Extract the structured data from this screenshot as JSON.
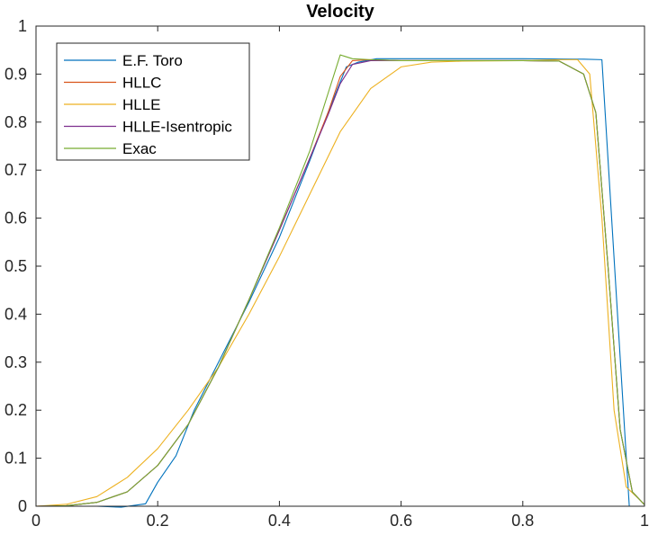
{
  "chart_data": {
    "type": "line",
    "title": "Velocity",
    "xlabel": "",
    "ylabel": "",
    "xlim": [
      0,
      1
    ],
    "ylim": [
      0,
      1
    ],
    "x_ticks": [
      "0",
      "0.2",
      "0.4",
      "0.6",
      "0.8",
      "1"
    ],
    "y_ticks": [
      "0",
      "0.1",
      "0.2",
      "0.3",
      "0.4",
      "0.5",
      "0.6",
      "0.7",
      "0.8",
      "0.9",
      "1"
    ],
    "grid": false,
    "legend_position": "top-left",
    "series": [
      {
        "name": "E.F. Toro",
        "color": "#0072BD",
        "points": [
          [
            0,
            0
          ],
          [
            0.05,
            0
          ],
          [
            0.1,
            0
          ],
          [
            0.14,
            -0.002
          ],
          [
            0.18,
            0.005
          ],
          [
            0.2,
            0.05
          ],
          [
            0.23,
            0.105
          ],
          [
            0.26,
            0.2
          ],
          [
            0.3,
            0.3
          ],
          [
            0.35,
            0.425
          ],
          [
            0.4,
            0.56
          ],
          [
            0.45,
            0.72
          ],
          [
            0.48,
            0.82
          ],
          [
            0.51,
            0.915
          ],
          [
            0.53,
            0.925
          ],
          [
            0.56,
            0.932
          ],
          [
            0.6,
            0.932
          ],
          [
            0.7,
            0.932
          ],
          [
            0.8,
            0.932
          ],
          [
            0.9,
            0.931
          ],
          [
            0.93,
            0.93
          ],
          [
            0.96,
            0.31
          ],
          [
            0.975,
            0
          ],
          [
            0.99,
            0
          ],
          [
            1,
            0
          ]
        ]
      },
      {
        "name": "HLLC",
        "color": "#D95319",
        "points": [
          [
            0,
            0
          ],
          [
            0.05,
            0.001
          ],
          [
            0.1,
            0.008
          ],
          [
            0.15,
            0.03
          ],
          [
            0.2,
            0.085
          ],
          [
            0.25,
            0.17
          ],
          [
            0.3,
            0.29
          ],
          [
            0.35,
            0.43
          ],
          [
            0.4,
            0.575
          ],
          [
            0.45,
            0.725
          ],
          [
            0.48,
            0.82
          ],
          [
            0.5,
            0.895
          ],
          [
            0.52,
            0.928
          ],
          [
            0.55,
            0.93
          ],
          [
            0.6,
            0.928
          ],
          [
            0.7,
            0.928
          ],
          [
            0.8,
            0.928
          ],
          [
            0.86,
            0.927
          ],
          [
            0.9,
            0.9
          ],
          [
            0.92,
            0.82
          ],
          [
            0.94,
            0.5
          ],
          [
            0.96,
            0.16
          ],
          [
            0.98,
            0.03
          ],
          [
            1,
            0.003
          ]
        ]
      },
      {
        "name": "HLLE",
        "color": "#EDB120",
        "points": [
          [
            0,
            0
          ],
          [
            0.05,
            0.004
          ],
          [
            0.1,
            0.02
          ],
          [
            0.15,
            0.06
          ],
          [
            0.2,
            0.12
          ],
          [
            0.25,
            0.2
          ],
          [
            0.3,
            0.29
          ],
          [
            0.35,
            0.4
          ],
          [
            0.4,
            0.52
          ],
          [
            0.45,
            0.65
          ],
          [
            0.5,
            0.78
          ],
          [
            0.55,
            0.87
          ],
          [
            0.6,
            0.915
          ],
          [
            0.65,
            0.925
          ],
          [
            0.7,
            0.927
          ],
          [
            0.8,
            0.928
          ],
          [
            0.86,
            0.93
          ],
          [
            0.89,
            0.93
          ],
          [
            0.91,
            0.9
          ],
          [
            0.93,
            0.6
          ],
          [
            0.95,
            0.2
          ],
          [
            0.97,
            0.04
          ],
          [
            1,
            0.004
          ]
        ]
      },
      {
        "name": "HLLE-Isentropic",
        "color": "#7E2F8E",
        "points": [
          [
            0,
            0
          ],
          [
            0.05,
            0.001
          ],
          [
            0.1,
            0.008
          ],
          [
            0.15,
            0.03
          ],
          [
            0.2,
            0.085
          ],
          [
            0.25,
            0.17
          ],
          [
            0.3,
            0.29
          ],
          [
            0.35,
            0.43
          ],
          [
            0.4,
            0.575
          ],
          [
            0.45,
            0.725
          ],
          [
            0.48,
            0.815
          ],
          [
            0.5,
            0.88
          ],
          [
            0.52,
            0.92
          ],
          [
            0.55,
            0.928
          ],
          [
            0.6,
            0.928
          ],
          [
            0.7,
            0.928
          ],
          [
            0.8,
            0.928
          ],
          [
            0.86,
            0.927
          ],
          [
            0.9,
            0.9
          ],
          [
            0.92,
            0.82
          ],
          [
            0.94,
            0.5
          ],
          [
            0.96,
            0.16
          ],
          [
            0.98,
            0.03
          ],
          [
            1,
            0.003
          ]
        ]
      },
      {
        "name": "Exac",
        "color": "#77AC30",
        "points": [
          [
            0,
            0
          ],
          [
            0.05,
            0.001
          ],
          [
            0.1,
            0.008
          ],
          [
            0.15,
            0.03
          ],
          [
            0.2,
            0.085
          ],
          [
            0.25,
            0.17
          ],
          [
            0.3,
            0.29
          ],
          [
            0.35,
            0.43
          ],
          [
            0.4,
            0.58
          ],
          [
            0.45,
            0.74
          ],
          [
            0.48,
            0.86
          ],
          [
            0.5,
            0.94
          ],
          [
            0.52,
            0.932
          ],
          [
            0.55,
            0.93
          ],
          [
            0.6,
            0.928
          ],
          [
            0.7,
            0.928
          ],
          [
            0.8,
            0.928
          ],
          [
            0.86,
            0.927
          ],
          [
            0.9,
            0.9
          ],
          [
            0.92,
            0.82
          ],
          [
            0.94,
            0.5
          ],
          [
            0.96,
            0.16
          ],
          [
            0.98,
            0.03
          ],
          [
            1,
            0.003
          ]
        ]
      }
    ]
  }
}
